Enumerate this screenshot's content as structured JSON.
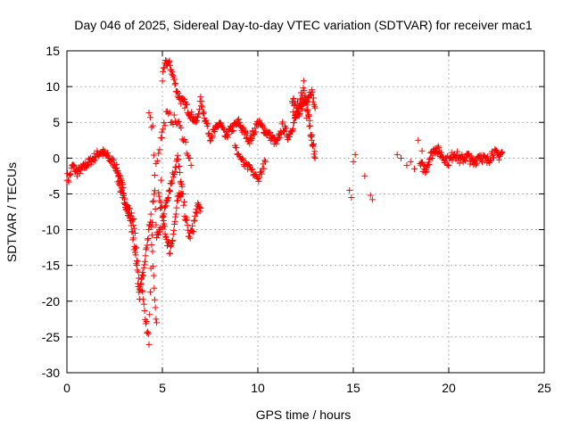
{
  "chart_data": {
    "type": "scatter",
    "title": "Day 046 of 2025, Sidereal Day-to-day VTEC variation (SDTVAR) for receiver mac1",
    "xlabel": "GPS time / hours",
    "ylabel": "SDTVAR / TECUs",
    "xlim": [
      0,
      25
    ],
    "ylim": [
      -30,
      15
    ],
    "xticks": [
      0,
      5,
      10,
      15,
      20,
      25
    ],
    "yticks": [
      -30,
      -25,
      -20,
      -15,
      -10,
      -5,
      0,
      5,
      10,
      15
    ],
    "grid": true,
    "marker": "+",
    "color": "#ff0000",
    "series": [
      {
        "name": "SDTVAR",
        "trace": [
          [
            0.0,
            -2.5
          ],
          [
            0.1,
            -3.0
          ],
          [
            0.2,
            -2.0
          ],
          [
            0.3,
            -1.0
          ],
          [
            0.5,
            -2.0
          ],
          [
            0.8,
            -1.5
          ],
          [
            1.0,
            -1.0
          ],
          [
            1.2,
            -0.5
          ],
          [
            1.5,
            0.3
          ],
          [
            1.7,
            0.8
          ],
          [
            1.9,
            0.7
          ],
          [
            2.1,
            0.3
          ],
          [
            2.3,
            -0.3
          ],
          [
            2.5,
            -0.8
          ],
          [
            2.6,
            -1.5
          ],
          [
            2.8,
            -3.0
          ],
          [
            3.0,
            -5.0
          ],
          [
            3.1,
            -6.5
          ],
          [
            3.3,
            -7.5
          ],
          [
            3.5,
            -9.0
          ],
          [
            3.6,
            -12.0
          ],
          [
            3.7,
            -15.0
          ],
          [
            3.8,
            -18.0
          ],
          [
            3.9,
            -17.0
          ],
          [
            4.0,
            -20.0
          ],
          [
            4.1,
            -22.0
          ],
          [
            4.2,
            -24.0
          ],
          [
            4.3,
            -25.5
          ],
          [
            4.4,
            -16.0
          ],
          [
            4.5,
            -6.0
          ],
          [
            4.6,
            -5.0
          ],
          [
            4.7,
            -11.0
          ],
          [
            4.9,
            -10.0
          ],
          [
            5.0,
            11.0
          ],
          [
            5.1,
            12.5
          ],
          [
            5.2,
            13.5
          ],
          [
            5.4,
            13.0
          ],
          [
            5.6,
            11.0
          ],
          [
            5.8,
            9.0
          ],
          [
            6.0,
            8.0
          ],
          [
            6.2,
            7.5
          ],
          [
            6.5,
            6.0
          ],
          [
            6.8,
            5.0
          ],
          [
            7.0,
            8.0
          ],
          [
            7.2,
            6.0
          ],
          [
            7.5,
            3.0
          ],
          [
            7.8,
            4.0
          ],
          [
            8.0,
            5.0
          ],
          [
            8.3,
            3.0
          ],
          [
            8.6,
            4.0
          ],
          [
            9.0,
            5.0
          ],
          [
            9.3,
            3.5
          ],
          [
            9.6,
            2.5
          ],
          [
            10.0,
            5.0
          ],
          [
            11.0,
            2.0
          ],
          [
            11.3,
            4.5
          ],
          [
            11.6,
            3.0
          ],
          [
            11.9,
            5.0
          ],
          [
            12.2,
            7.0
          ],
          [
            12.5,
            8.0
          ],
          [
            12.8,
            9.5
          ],
          [
            13.0,
            7.0
          ]
        ],
        "trace2": [
          [
            2.6,
            -2.0
          ],
          [
            2.8,
            -4.0
          ],
          [
            3.0,
            -6.0
          ],
          [
            3.2,
            -8.0
          ],
          [
            3.4,
            -10.0
          ],
          [
            3.6,
            -14.0
          ],
          [
            3.8,
            -19.0
          ],
          [
            4.0,
            -16.0
          ],
          [
            4.2,
            -12.0
          ],
          [
            4.4,
            -8.0
          ],
          [
            4.6,
            -20.0
          ],
          [
            4.7,
            -23.0
          ]
        ],
        "trace3": [
          [
            5.0,
            -9.5
          ],
          [
            5.2,
            -6.0
          ],
          [
            5.4,
            -4.0
          ],
          [
            5.6,
            -2.0
          ],
          [
            5.8,
            0.0
          ],
          [
            6.0,
            -4.0
          ],
          [
            6.2,
            -8.0
          ],
          [
            6.4,
            -11.0
          ],
          [
            6.6,
            -10.0
          ],
          [
            6.8,
            -7.0
          ],
          [
            7.0,
            -7.0
          ]
        ],
        "trace4": [
          [
            4.8,
            -5.0
          ],
          [
            5.0,
            -8.0
          ],
          [
            5.2,
            -11.0
          ],
          [
            5.4,
            -13.0
          ],
          [
            5.6,
            -10.0
          ],
          [
            5.8,
            -6.0
          ],
          [
            6.0,
            -5.0
          ]
        ],
        "trace5": [
          [
            4.3,
            7.0
          ],
          [
            4.5,
            4.0
          ],
          [
            4.6,
            -2.0
          ],
          [
            4.8,
            1.0
          ],
          [
            5.2,
            6.0
          ],
          [
            5.8,
            5.0
          ],
          [
            6.1,
            3.0
          ],
          [
            6.5,
            -1.0
          ]
        ],
        "trace6": [
          [
            11.8,
            7.5
          ],
          [
            12.0,
            6.5
          ],
          [
            12.2,
            7.0
          ],
          [
            12.4,
            10.0
          ],
          [
            12.6,
            6.0
          ],
          [
            12.8,
            4.0
          ],
          [
            13.0,
            0.0
          ]
        ],
        "trace7": [
          [
            8.8,
            1.5
          ],
          [
            9.0,
            0.5
          ],
          [
            9.3,
            -1.0
          ],
          [
            9.6,
            -1.5
          ],
          [
            10.0,
            -3.0
          ],
          [
            10.4,
            -0.5
          ]
        ],
        "points": [
          [
            14.8,
            -4.5
          ],
          [
            14.9,
            -5.5
          ],
          [
            15.0,
            -0.5
          ],
          [
            15.1,
            0.5
          ],
          [
            15.6,
            -2.5
          ],
          [
            15.9,
            -5.2
          ],
          [
            16.0,
            -5.8
          ],
          [
            17.3,
            0.5
          ],
          [
            17.5,
            0.0
          ],
          [
            17.8,
            -1.0
          ],
          [
            18.0,
            -0.5
          ],
          [
            18.2,
            -1.5
          ],
          [
            18.4,
            2.5
          ],
          [
            18.6,
            1.0
          ]
        ],
        "trace8": [
          [
            18.5,
            -1.0
          ],
          [
            18.8,
            -1.5
          ],
          [
            19.0,
            0.0
          ],
          [
            19.3,
            1.5
          ],
          [
            19.6,
            0.5
          ],
          [
            20.0,
            -0.5
          ],
          [
            20.3,
            0.8
          ],
          [
            20.6,
            -0.3
          ],
          [
            21.0,
            0.3
          ],
          [
            21.3,
            -0.8
          ],
          [
            21.6,
            0.5
          ],
          [
            22.0,
            -0.5
          ],
          [
            22.3,
            0.8
          ],
          [
            22.6,
            0.3
          ],
          [
            22.8,
            0.8
          ]
        ]
      }
    ]
  }
}
